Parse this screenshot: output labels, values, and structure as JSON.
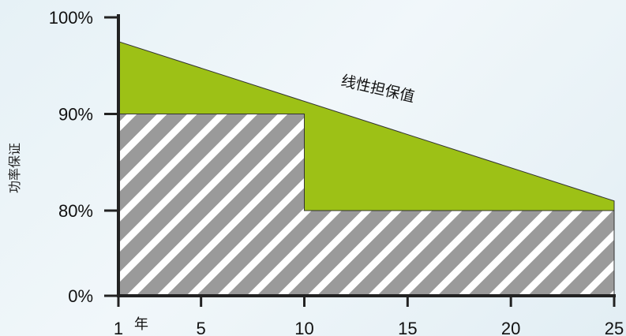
{
  "chart_data": {
    "type": "area",
    "ylabel": "功率保证",
    "x_unit_label": "年",
    "x_ticks": [
      1,
      5,
      10,
      15,
      20,
      25
    ],
    "y_ticks": [
      {
        "value": 0,
        "label": "0%"
      },
      {
        "value": 80,
        "label": "80%"
      },
      {
        "value": 90,
        "label": "90%"
      },
      {
        "value": 100,
        "label": "100%"
      }
    ],
    "y_scale": "piecewise (0 to 80 and 80 to 100 shown with different spacing)",
    "series": [
      {
        "name": "线性担保值",
        "style": "green filled area",
        "color": "#9dc116",
        "x": [
          1,
          25
        ],
        "y": [
          97.5,
          81.0
        ]
      },
      {
        "style": "grey hatched step area",
        "color": "#9a9a9a",
        "x": [
          1,
          10,
          10,
          25
        ],
        "y": [
          90,
          90,
          80,
          80
        ]
      }
    ],
    "annotations": [
      {
        "text": "线性担保值"
      }
    ]
  }
}
